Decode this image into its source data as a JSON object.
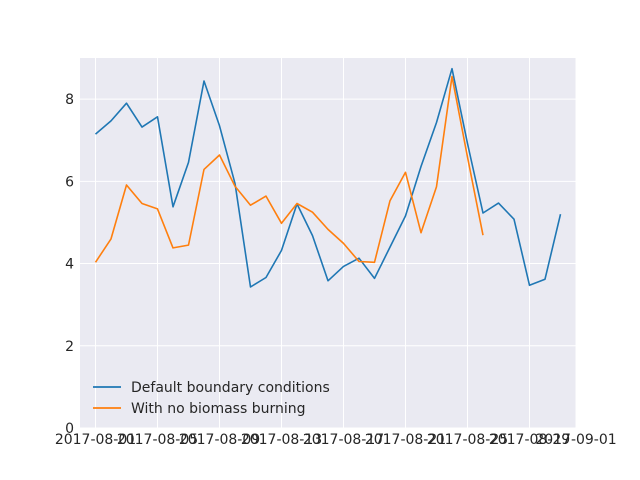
{
  "chart_data": {
    "type": "line",
    "title": "",
    "xlabel": "",
    "ylabel": "",
    "grid": true,
    "legend_placement": "lower-left",
    "style": {
      "background": "#eaeaf2",
      "grid_color": "#ffffff"
    },
    "xlim": [
      "2017-07-31",
      "2017-09-01"
    ],
    "ylim": [
      0,
      9
    ],
    "x_ticks": [
      "2017-08-01",
      "2017-08-05",
      "2017-08-09",
      "2017-08-13",
      "2017-08-17",
      "2017-08-21",
      "2017-08-25",
      "2017-08-29",
      "2017-09-01"
    ],
    "y_ticks": [
      0,
      2,
      4,
      6,
      8
    ],
    "series": [
      {
        "name": "Default boundary conditions",
        "color": "#1f77b4",
        "x": [
          "2017-08-01",
          "2017-08-02",
          "2017-08-03",
          "2017-08-04",
          "2017-08-05",
          "2017-08-06",
          "2017-08-07",
          "2017-08-08",
          "2017-08-09",
          "2017-08-10",
          "2017-08-11",
          "2017-08-12",
          "2017-08-13",
          "2017-08-14",
          "2017-08-15",
          "2017-08-16",
          "2017-08-17",
          "2017-08-18",
          "2017-08-19",
          "2017-08-20",
          "2017-08-21",
          "2017-08-22",
          "2017-08-23",
          "2017-08-24",
          "2017-08-25",
          "2017-08-26",
          "2017-08-27",
          "2017-08-28",
          "2017-08-29",
          "2017-08-30",
          "2017-08-31"
        ],
        "y": [
          7.15,
          7.47,
          7.9,
          7.32,
          7.57,
          5.38,
          6.46,
          8.44,
          7.35,
          5.95,
          3.43,
          3.66,
          4.32,
          5.45,
          4.68,
          3.58,
          3.93,
          4.13,
          3.64,
          4.4,
          5.16,
          6.36,
          7.43,
          8.74,
          6.92,
          5.23,
          5.47,
          5.08,
          3.47,
          3.62,
          5.2
        ]
      },
      {
        "name": "With no biomass burning",
        "color": "#ff7f0e",
        "x": [
          "2017-08-01",
          "2017-08-02",
          "2017-08-03",
          "2017-08-04",
          "2017-08-05",
          "2017-08-06",
          "2017-08-07",
          "2017-08-08",
          "2017-08-09",
          "2017-08-10",
          "2017-08-11",
          "2017-08-12",
          "2017-08-13",
          "2017-08-14",
          "2017-08-15",
          "2017-08-16",
          "2017-08-17",
          "2017-08-18",
          "2017-08-19",
          "2017-08-20",
          "2017-08-21",
          "2017-08-22",
          "2017-08-23",
          "2017-08-24",
          "2017-08-25",
          "2017-08-26"
        ],
        "y": [
          4.03,
          4.6,
          5.91,
          5.46,
          5.33,
          4.38,
          4.45,
          6.29,
          6.64,
          5.88,
          5.42,
          5.64,
          4.98,
          5.46,
          5.25,
          4.83,
          4.49,
          4.05,
          4.03,
          5.53,
          6.22,
          4.75,
          5.87,
          8.55,
          6.59,
          4.69
        ]
      }
    ]
  }
}
